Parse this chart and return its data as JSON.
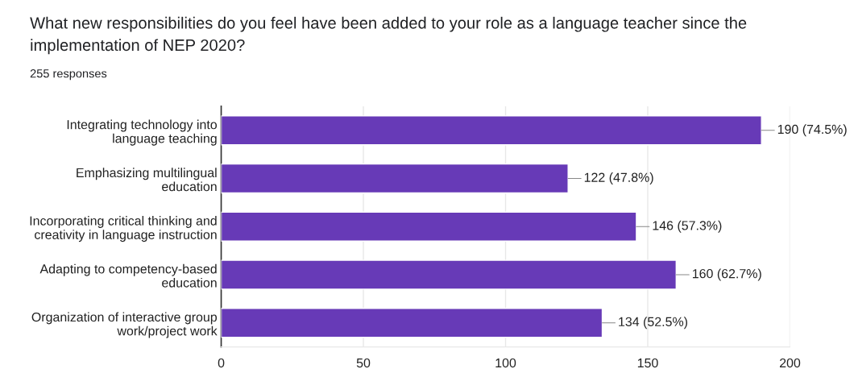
{
  "chart_data": {
    "type": "bar",
    "orientation": "horizontal",
    "title": "What new responsibilities do you feel have been added to your role as a language teacher since the implementation of NEP 2020?",
    "subtitle": "255 responses",
    "categories": [
      "Integrating technology into\nlanguage teaching",
      "Emphasizing multilingual\neducation",
      "Incorporating critical thinking and\ncreativity in language instruction",
      "Adapting to competency-based\neducation",
      "Organization of interactive group\nwork/project work"
    ],
    "values": [
      190,
      122,
      146,
      160,
      134
    ],
    "value_labels": [
      "190 (74.5%)",
      "122 (47.8%)",
      "146 (57.3%)",
      "160 (62.7%)",
      "134 (52.5%)"
    ],
    "color": "#673ab7",
    "xlim": [
      0,
      200
    ],
    "xticks": [
      0,
      50,
      100,
      150,
      200
    ],
    "grid": "x",
    "legend": false
  }
}
